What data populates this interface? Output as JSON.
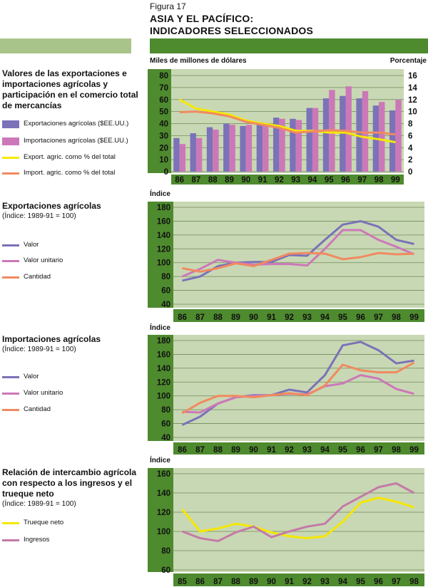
{
  "figure": {
    "label": "Figura 17",
    "title_line1": "ASIA Y EL PACÍFICO:",
    "title_line2": "INDICADORES SELECCIONADOS"
  },
  "colors": {
    "frame_dark": "#4e8a2e",
    "plot_bg": "#c9d8b4",
    "light_bar": "#a9c48a",
    "exports": "#7b72b8",
    "imports": "#cc78b8",
    "export_pct": "#f5e800",
    "import_pct": "#f08a60",
    "valor": "#7b72b8",
    "valor_unitario": "#cc78b8",
    "cantidad": "#f08a60",
    "trueque": "#f5e800",
    "ingresos": "#c47aa8"
  },
  "sections": [
    {
      "title": "Valores de las exportaciones e importaciones agrícolas y participación en el comercio total de mercancías",
      "subtitle": "",
      "legend": [
        "Exportaciones agrícolas ($EE.UU.)",
        "Importaciones agrícolas ($EE.UU.)",
        "Export. agric. como % del total",
        "Import. agric. como % del total"
      ]
    },
    {
      "title": "Exportaciones agrícolas",
      "subtitle": "(Índice: 1989-91 = 100)",
      "legend": [
        "Valor",
        "Valor unitario",
        "Cantidad"
      ]
    },
    {
      "title": "Importaciones agrícolas",
      "subtitle": "(Índice: 1989-91 = 100)",
      "legend": [
        "Valor",
        "Valor unitario",
        "Cantidad"
      ]
    },
    {
      "title": "Relación de intercambio agrícola con respecto a los ingresos y el trueque neto",
      "subtitle": "(Índice: 1989-91 = 100)",
      "legend": [
        "Trueque neto",
        "Ingresos"
      ]
    }
  ],
  "chart_data": [
    {
      "type": "bar",
      "ylabel": "Miles de millones de dólares",
      "y2label": "Porcentaje",
      "ylim": [
        0,
        80
      ],
      "y2lim": [
        0,
        16
      ],
      "yticks": [
        0,
        10,
        20,
        30,
        40,
        50,
        60,
        70,
        80
      ],
      "y2ticks": [
        0,
        2,
        4,
        6,
        8,
        10,
        12,
        14,
        16
      ],
      "categories": [
        "86",
        "87",
        "88",
        "89",
        "90",
        "91",
        "92",
        "93",
        "94",
        "95",
        "96",
        "97",
        "98",
        "99"
      ],
      "series": [
        {
          "name": "Exportaciones agrícolas ($EE.UU.)",
          "kind": "bar",
          "axis": "left",
          "values": [
            28,
            32,
            37,
            40,
            38,
            41,
            45,
            44,
            53,
            61,
            63,
            61,
            55,
            51
          ]
        },
        {
          "name": "Importaciones agrícolas ($EE.UU.)",
          "kind": "bar",
          "axis": "left",
          "values": [
            23,
            28,
            35,
            39,
            39,
            39,
            44,
            43,
            53,
            68,
            71,
            67,
            58,
            60
          ]
        },
        {
          "name": "Export. agric. como % del total",
          "kind": "line",
          "axis": "right",
          "values": [
            12,
            10.5,
            10,
            9.5,
            8.5,
            8,
            7.6,
            6.8,
            6.8,
            6.5,
            6.5,
            5.8,
            5.4,
            4.9
          ]
        },
        {
          "name": "Import. agric. como % del total",
          "kind": "line",
          "axis": "right",
          "values": [
            9.9,
            10,
            9.7,
            9.2,
            8.3,
            7.8,
            7.3,
            6.5,
            6.7,
            6.9,
            6.8,
            6.5,
            6.5,
            6.2
          ]
        }
      ]
    },
    {
      "type": "line",
      "ylabel": "Índice",
      "ylim": [
        40,
        180
      ],
      "yticks": [
        40,
        60,
        80,
        100,
        120,
        140,
        160,
        180
      ],
      "categories": [
        "86",
        "87",
        "88",
        "89",
        "90",
        "91",
        "92",
        "93",
        "94",
        "95",
        "96",
        "97",
        "98",
        "99"
      ],
      "series": [
        {
          "name": "Valor",
          "values": [
            74,
            80,
            95,
            100,
            101,
            101,
            111,
            110,
            133,
            155,
            160,
            152,
            133,
            127
          ]
        },
        {
          "name": "Valor unitario",
          "values": [
            80,
            91,
            104,
            100,
            97,
            98,
            98,
            96,
            120,
            147,
            147,
            133,
            123,
            112
          ]
        },
        {
          "name": "Cantidad",
          "values": [
            92,
            87,
            92,
            99,
            95,
            104,
            113,
            114,
            113,
            105,
            108,
            114,
            112,
            113
          ]
        }
      ]
    },
    {
      "type": "line",
      "ylabel": "Índice",
      "ylim": [
        40,
        180
      ],
      "yticks": [
        40,
        60,
        80,
        100,
        120,
        140,
        160,
        180
      ],
      "categories": [
        "86",
        "87",
        "88",
        "89",
        "90",
        "91",
        "92",
        "93",
        "94",
        "95",
        "96",
        "97",
        "98",
        "99"
      ],
      "series": [
        {
          "name": "Valor",
          "values": [
            58,
            70,
            89,
            98,
            101,
            101,
            109,
            105,
            130,
            173,
            178,
            166,
            147,
            151
          ]
        },
        {
          "name": "Valor unitario",
          "values": [
            77,
            76,
            89,
            98,
            100,
            101,
            103,
            102,
            114,
            118,
            130,
            125,
            110,
            103
          ]
        },
        {
          "name": "Cantidad",
          "values": [
            75,
            90,
            100,
            100,
            98,
            101,
            104,
            101,
            115,
            145,
            137,
            134,
            134,
            148
          ]
        }
      ]
    },
    {
      "type": "line",
      "ylabel": "Índice",
      "ylim": [
        60,
        160
      ],
      "yticks": [
        60,
        80,
        100,
        120,
        140,
        160
      ],
      "categories": [
        "85",
        "86",
        "87",
        "88",
        "89",
        "90",
        "91",
        "92",
        "93",
        "94",
        "95",
        "96",
        "97",
        "98"
      ],
      "series": [
        {
          "name": "Trueque neto",
          "values": [
            123,
            100,
            103,
            108,
            105,
            99,
            95,
            93,
            95,
            110,
            130,
            135,
            131,
            125
          ]
        },
        {
          "name": "Ingresos",
          "values": [
            100,
            93,
            90,
            99,
            105,
            94,
            100,
            105,
            108,
            126,
            136,
            146,
            150,
            140
          ]
        }
      ]
    }
  ]
}
